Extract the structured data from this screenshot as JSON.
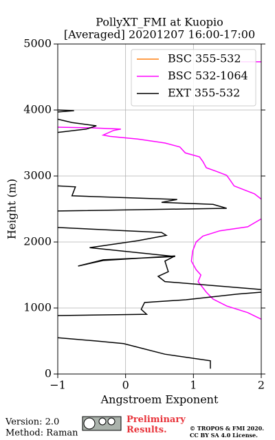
{
  "chart_data": {
    "type": "profile",
    "title": "PollyXT_FMI at Kuopio",
    "subtitle": "[Averaged] 20201207 16:00-17:00",
    "xlabel": "Angstroem Exponent",
    "ylabel": "Height (m)",
    "xlim": [
      -1,
      2
    ],
    "xticks": [
      {
        "value": -1,
        "label": "−1"
      },
      0,
      1,
      2
    ],
    "ylim": [
      0,
      5000
    ],
    "yticks": [
      0,
      1000,
      2000,
      3000,
      4000,
      5000
    ],
    "grid": true,
    "legend": "upper right",
    "series": [
      {
        "name": "BSC 355-532",
        "color": "#ff7f0e",
        "values": [],
        "heights": []
      },
      {
        "name": "BSC 532-1064",
        "color": "#ff00ff",
        "values": [
          1.7,
          2.0,
          null,
          -1,
          -0.53,
          -0.07,
          -0.18,
          -0.33,
          -0.23,
          0.18,
          0.58,
          0.8,
          0.88,
          1.09,
          1.14,
          1.19,
          1.34,
          1.49,
          1.54,
          1.6,
          1.75,
          1.9,
          2.0,
          null,
          2.0,
          1.8,
          1.39,
          1.14,
          1.04,
          0.99,
          0.97,
          1.04,
          1.11,
          1.07,
          1.19,
          1.29,
          1.49,
          1.8,
          2.0
        ],
        "heights": [
          4730,
          4730,
          null,
          3740,
          3730,
          3710,
          3690,
          3620,
          3600,
          3560,
          3500,
          3440,
          3350,
          3290,
          3220,
          3125,
          3070,
          3010,
          2940,
          2850,
          2790,
          2730,
          2650,
          null,
          2350,
          2230,
          2170,
          2090,
          2000,
          1865,
          1710,
          1580,
          1500,
          1400,
          1240,
          1135,
          1030,
          930,
          830
        ]
      },
      {
        "name": "EXT 355-532",
        "color": "#000000",
        "values": [
          1.25,
          1.25,
          0.58,
          -0.03,
          -0.43,
          -1,
          null,
          -1,
          0.31,
          0.23,
          0.28,
          0.89,
          1.65,
          2.0,
          null,
          2.0,
          0.58,
          0.48,
          0.63,
          0.58,
          0.73,
          -0.33,
          -0.7,
          -0.33,
          0.73,
          -0.53,
          0.18,
          0.6,
          0.53,
          -1,
          null,
          -1,
          1.49,
          1.29,
          0.53,
          0.76,
          -0.79,
          -0.74,
          -1,
          null,
          -1,
          -0.58,
          -0.43,
          -0.79,
          -1,
          null,
          -1,
          -0.76,
          -1
        ],
        "heights": [
          80,
          200,
          300,
          460,
          500,
          550,
          null,
          885,
          905,
          980,
          1083,
          1125,
          1210,
          1240,
          null,
          1280,
          1400,
          1480,
          1550,
          1710,
          1790,
          1720,
          1635,
          1730,
          1780,
          1915,
          2020,
          2100,
          2145,
          2220,
          null,
          2470,
          2510,
          2570,
          2600,
          2645,
          2700,
          2835,
          2850,
          null,
          3660,
          3710,
          3760,
          3810,
          3860,
          null,
          4000,
          3990,
          3970
        ]
      }
    ]
  },
  "footer": {
    "version": "Version: 2.0",
    "method": "Method: Raman",
    "status": "Preliminary Results.",
    "copyright": "© TROPOS & FMI 2020.",
    "license": "CC BY SA 4.0 License."
  }
}
